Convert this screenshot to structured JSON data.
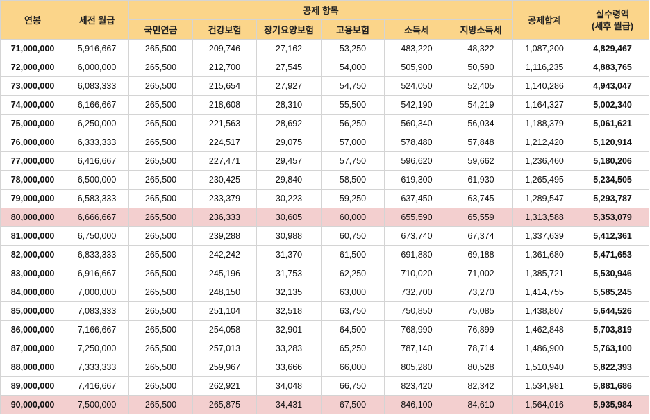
{
  "header": {
    "annual_salary": "연봉",
    "monthly_pretax": "세전 월급",
    "deduction_items": "공제 항목",
    "national_pension": "국민연금",
    "health_insurance": "건강보험",
    "long_term_care": "장기요양보험",
    "employment_insurance": "고용보험",
    "income_tax": "소득세",
    "local_income_tax": "지방소득세",
    "total_deduction": "공제합계",
    "net_pay_line1": "실수령액",
    "net_pay_line2": "(세후 월급)"
  },
  "highlight_color": "#f3cfcf",
  "header_color": "#fbd58a",
  "highlighted_rows": [
    9,
    19
  ],
  "rows": [
    [
      "71,000,000",
      "5,916,667",
      "265,500",
      "209,746",
      "27,162",
      "53,250",
      "483,220",
      "48,322",
      "1,087,200",
      "4,829,467"
    ],
    [
      "72,000,000",
      "6,000,000",
      "265,500",
      "212,700",
      "27,545",
      "54,000",
      "505,900",
      "50,590",
      "1,116,235",
      "4,883,765"
    ],
    [
      "73,000,000",
      "6,083,333",
      "265,500",
      "215,654",
      "27,927",
      "54,750",
      "524,050",
      "52,405",
      "1,140,286",
      "4,943,047"
    ],
    [
      "74,000,000",
      "6,166,667",
      "265,500",
      "218,608",
      "28,310",
      "55,500",
      "542,190",
      "54,219",
      "1,164,327",
      "5,002,340"
    ],
    [
      "75,000,000",
      "6,250,000",
      "265,500",
      "221,563",
      "28,692",
      "56,250",
      "560,340",
      "56,034",
      "1,188,379",
      "5,061,621"
    ],
    [
      "76,000,000",
      "6,333,333",
      "265,500",
      "224,517",
      "29,075",
      "57,000",
      "578,480",
      "57,848",
      "1,212,420",
      "5,120,914"
    ],
    [
      "77,000,000",
      "6,416,667",
      "265,500",
      "227,471",
      "29,457",
      "57,750",
      "596,620",
      "59,662",
      "1,236,460",
      "5,180,206"
    ],
    [
      "78,000,000",
      "6,500,000",
      "265,500",
      "230,425",
      "29,840",
      "58,500",
      "619,300",
      "61,930",
      "1,265,495",
      "5,234,505"
    ],
    [
      "79,000,000",
      "6,583,333",
      "265,500",
      "233,379",
      "30,223",
      "59,250",
      "637,450",
      "63,745",
      "1,289,547",
      "5,293,787"
    ],
    [
      "80,000,000",
      "6,666,667",
      "265,500",
      "236,333",
      "30,605",
      "60,000",
      "655,590",
      "65,559",
      "1,313,588",
      "5,353,079"
    ],
    [
      "81,000,000",
      "6,750,000",
      "265,500",
      "239,288",
      "30,988",
      "60,750",
      "673,740",
      "67,374",
      "1,337,639",
      "5,412,361"
    ],
    [
      "82,000,000",
      "6,833,333",
      "265,500",
      "242,242",
      "31,370",
      "61,500",
      "691,880",
      "69,188",
      "1,361,680",
      "5,471,653"
    ],
    [
      "83,000,000",
      "6,916,667",
      "265,500",
      "245,196",
      "31,753",
      "62,250",
      "710,020",
      "71,002",
      "1,385,721",
      "5,530,946"
    ],
    [
      "84,000,000",
      "7,000,000",
      "265,500",
      "248,150",
      "32,135",
      "63,000",
      "732,700",
      "73,270",
      "1,414,755",
      "5,585,245"
    ],
    [
      "85,000,000",
      "7,083,333",
      "265,500",
      "251,104",
      "32,518",
      "63,750",
      "750,850",
      "75,085",
      "1,438,807",
      "5,644,526"
    ],
    [
      "86,000,000",
      "7,166,667",
      "265,500",
      "254,058",
      "32,901",
      "64,500",
      "768,990",
      "76,899",
      "1,462,848",
      "5,703,819"
    ],
    [
      "87,000,000",
      "7,250,000",
      "265,500",
      "257,013",
      "33,283",
      "65,250",
      "787,140",
      "78,714",
      "1,486,900",
      "5,763,100"
    ],
    [
      "88,000,000",
      "7,333,333",
      "265,500",
      "259,967",
      "33,666",
      "66,000",
      "805,280",
      "80,528",
      "1,510,940",
      "5,822,393"
    ],
    [
      "89,000,000",
      "7,416,667",
      "265,500",
      "262,921",
      "34,048",
      "66,750",
      "823,420",
      "82,342",
      "1,534,981",
      "5,881,686"
    ],
    [
      "90,000,000",
      "7,500,000",
      "265,500",
      "265,875",
      "34,431",
      "67,500",
      "846,100",
      "84,610",
      "1,564,016",
      "5,935,984"
    ]
  ]
}
